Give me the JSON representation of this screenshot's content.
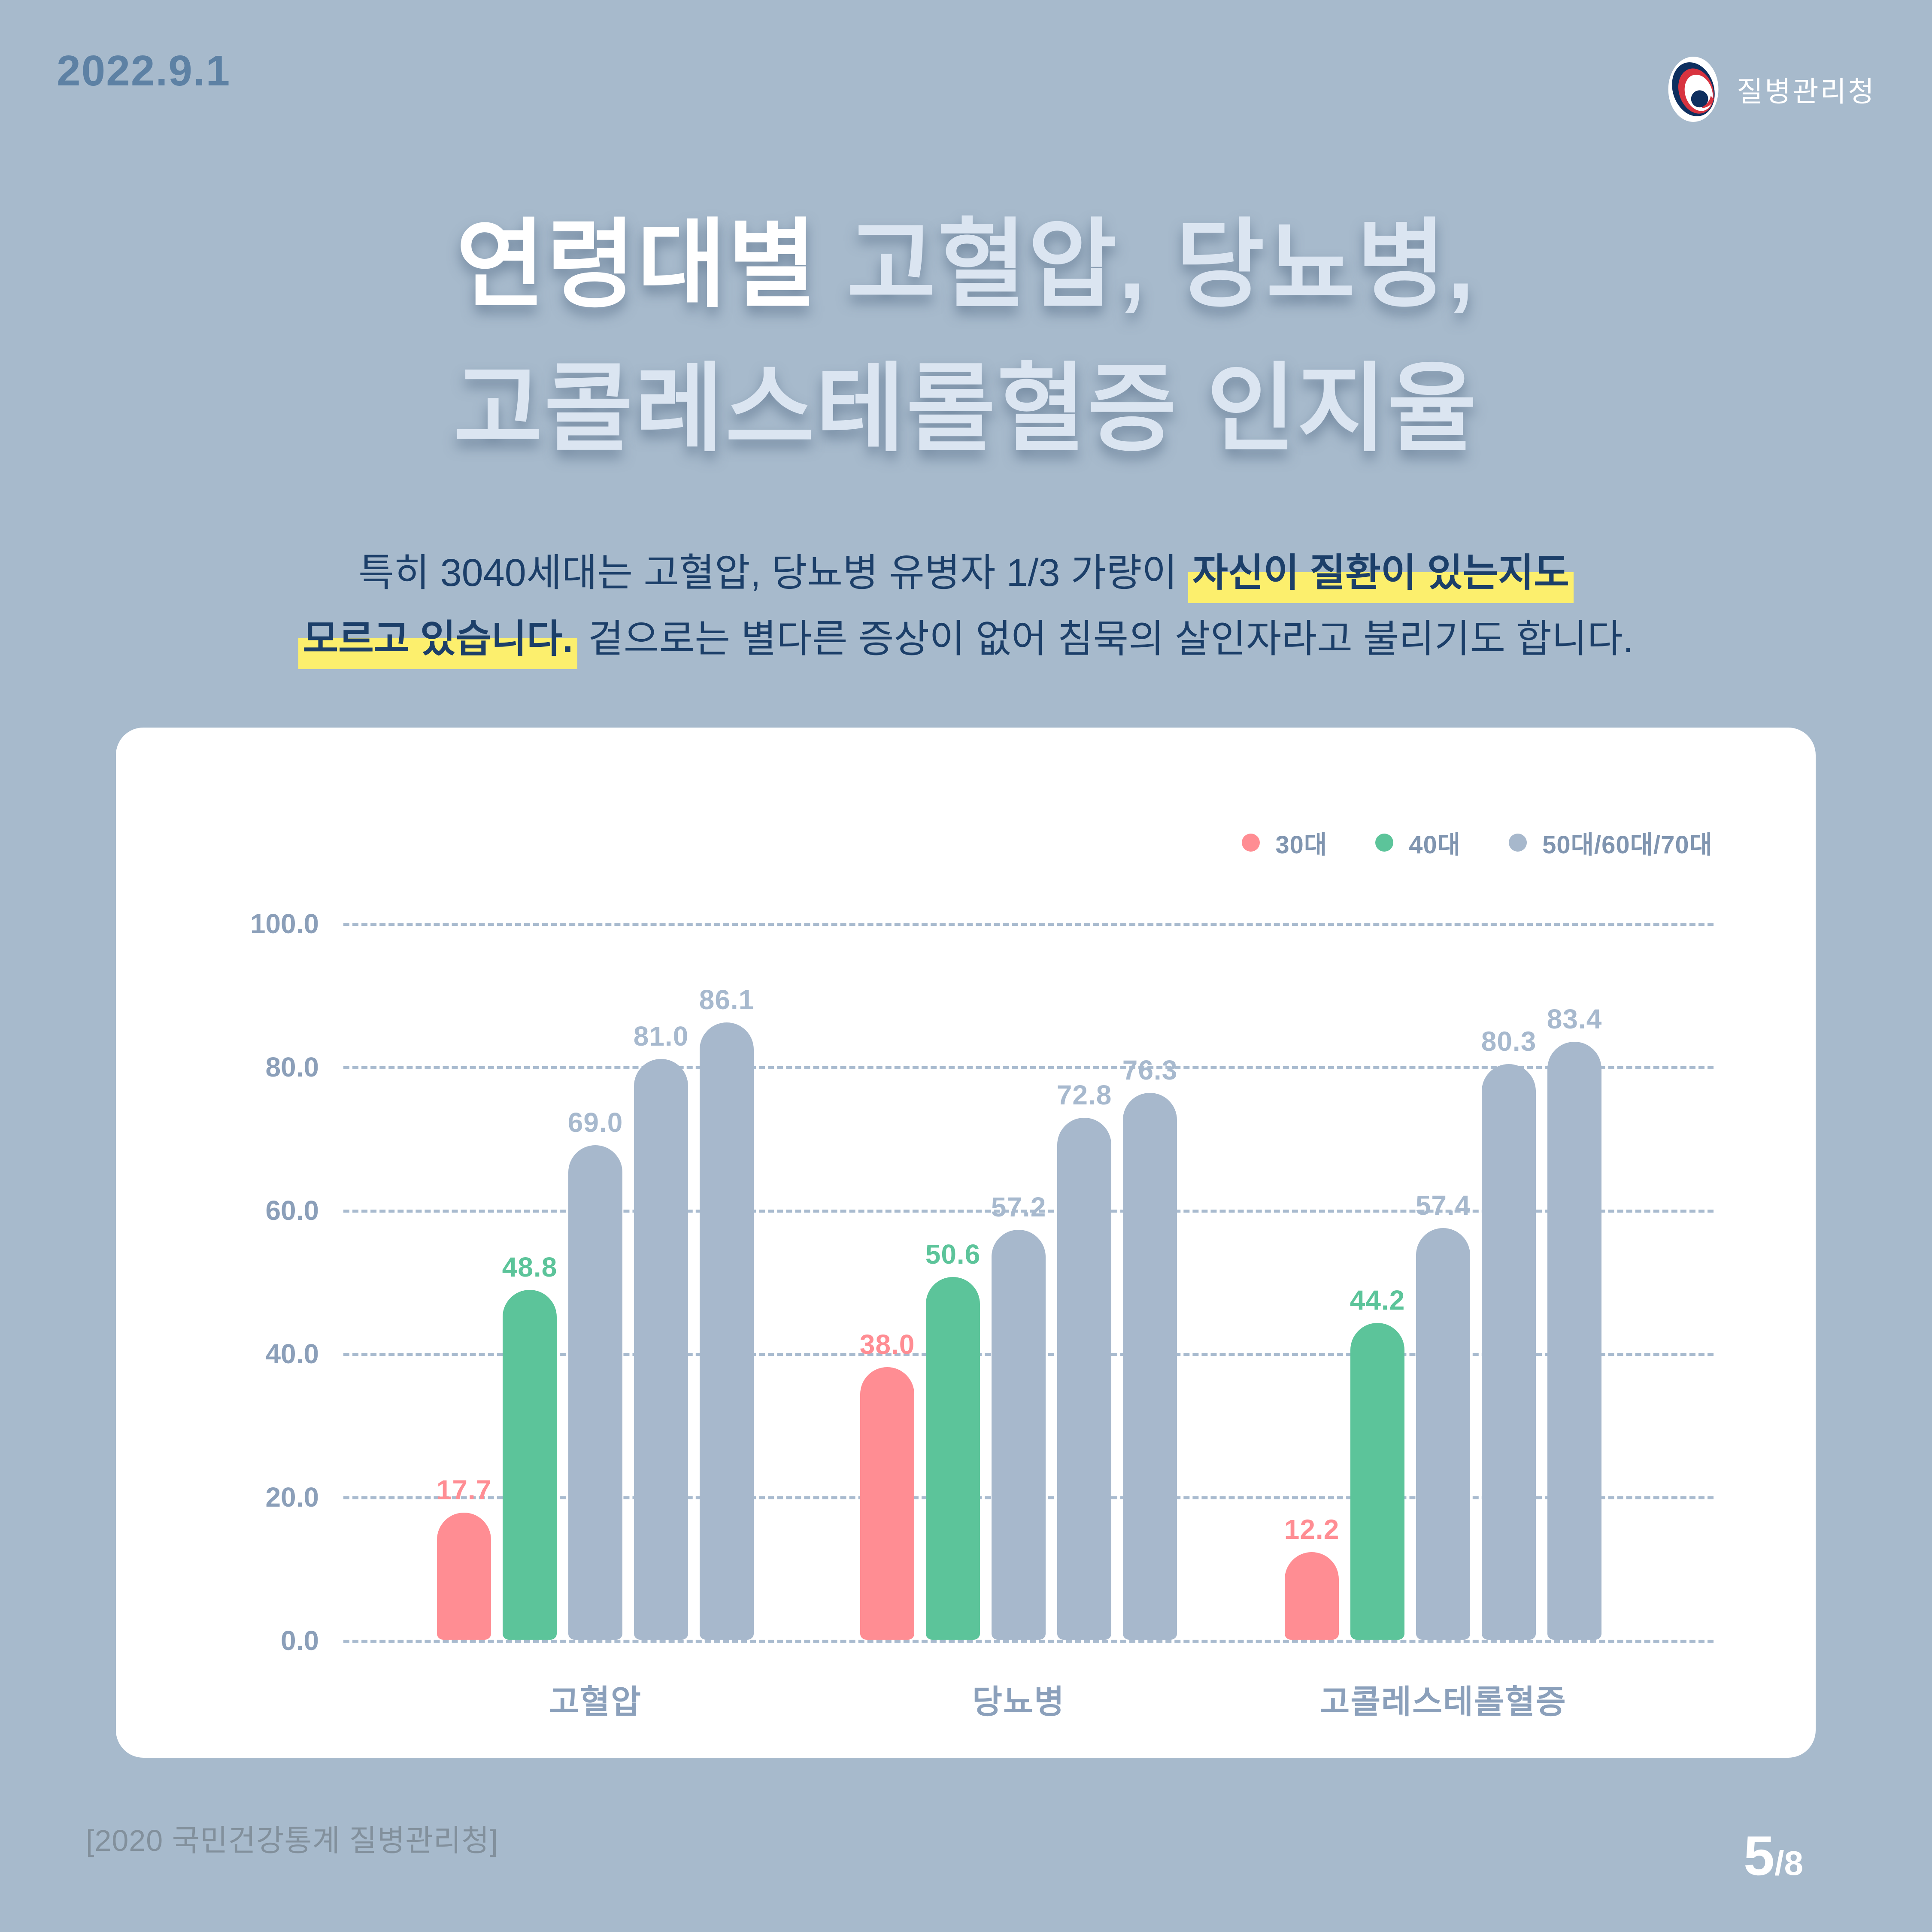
{
  "header": {
    "date": "2022.9.1",
    "logo_agency": "질병관리청"
  },
  "title": {
    "line1_em": "연령대별",
    "line1_rest": " 고혈압, 당뇨병,",
    "line2": "고콜레스테롤혈증 인지율"
  },
  "subtitle": {
    "line1_normal": "특히 3040세대는 고혈압, 당뇨병 유병자 1/3 가량이 ",
    "line1_bold": "자신이 질환이 있는지도",
    "line2_bold": "모르고 있습니다.",
    "line2_normal": " 겉으로는 별다른 증상이 없어 침묵의 살인자라고 불리기도 합니다."
  },
  "chart_data": {
    "type": "bar",
    "title": "연령대별 고혈압, 당뇨병, 고콜레스테롤혈증 인지율",
    "categories": [
      "고혈압",
      "당뇨병",
      "고콜레스테롤혈증"
    ],
    "series": [
      {
        "name": "30대",
        "color": "#ff8d93",
        "label_color": "#ff8d93",
        "values": [
          17.7,
          38.0,
          12.2
        ]
      },
      {
        "name": "40대",
        "color": "#5cc49a",
        "label_color": "#5cc49a",
        "values": [
          48.8,
          50.6,
          44.2
        ]
      },
      {
        "name": "50대",
        "color": "#a7b8cc",
        "label_color": "#a7b9ce",
        "values": [
          69.0,
          57.2,
          57.4
        ]
      },
      {
        "name": "60대",
        "color": "#a7b8cc",
        "label_color": "#a7b9ce",
        "values": [
          81.0,
          72.8,
          80.3
        ]
      },
      {
        "name": "70대",
        "color": "#a7b8cc",
        "label_color": "#a7b9ce",
        "values": [
          86.1,
          76.3,
          83.4
        ]
      }
    ],
    "legend": [
      {
        "label": "30대",
        "color": "#ff8d93"
      },
      {
        "label": "40대",
        "color": "#5cc49a"
      },
      {
        "label": "50대/60대/70대",
        "color": "#a7b8cc"
      }
    ],
    "y_axis": {
      "ticks": [
        "100.0",
        "80.0",
        "60.0",
        "40.0",
        "20.0",
        "0.0"
      ],
      "min": 0,
      "max": 100,
      "grid": "dashed"
    },
    "legend_position": "top-right",
    "value_labels": "one-decimal"
  },
  "footer": {
    "source": "[2020 국민건강통계 질병관리청]",
    "page_number": "5",
    "page_total": "/8"
  }
}
